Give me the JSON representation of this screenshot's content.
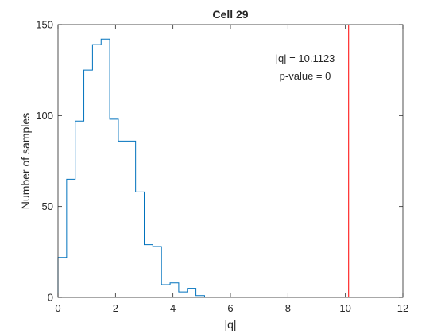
{
  "chart_data": {
    "type": "histogram",
    "title": "Cell 29",
    "xlabel": "|q|",
    "ylabel": "Number of samples",
    "xlim": [
      0,
      12
    ],
    "ylim": [
      0,
      150
    ],
    "xticks": [
      0,
      2,
      4,
      6,
      8,
      10,
      12
    ],
    "yticks": [
      0,
      50,
      100,
      150
    ],
    "grid": false,
    "box": true,
    "series": [
      {
        "color": "#0072BD",
        "bin_edges": [
          0,
          0.3,
          0.6,
          0.9,
          1.2,
          1.5,
          1.8,
          2.1,
          2.4,
          2.7,
          3.0,
          3.3,
          3.6,
          3.9,
          4.2,
          4.5,
          4.8,
          5.1
        ],
        "counts": [
          22,
          65,
          97,
          125,
          139,
          142,
          98,
          86,
          86,
          58,
          29,
          28,
          7,
          8,
          3,
          5,
          1
        ]
      }
    ],
    "reference_line": {
      "x": 10.1123,
      "color": "#FF0000"
    },
    "annotations": [
      "|q| = 10.1123",
      "p-value = 0"
    ]
  }
}
